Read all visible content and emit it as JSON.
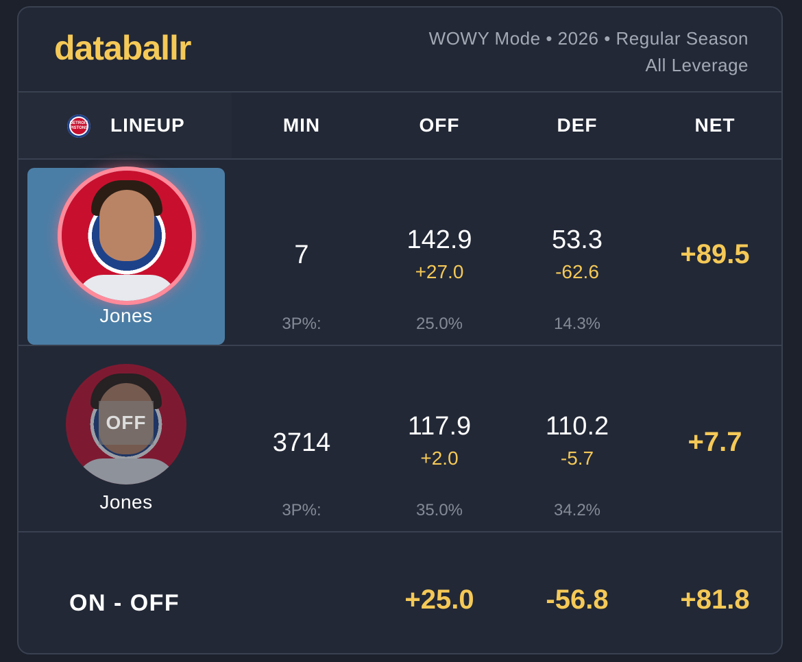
{
  "brand": {
    "logo": "databallr",
    "accent_color": "#f5c957"
  },
  "meta": {
    "line1": "WOWY Mode • 2026 • Regular Season",
    "line2": "All Leverage"
  },
  "columns": {
    "lineup": "LINEUP",
    "team_logo_text": "DETROIT PISTONS",
    "min": "MIN",
    "off": "OFF",
    "def": "DEF",
    "net": "NET"
  },
  "rows": [
    {
      "player": "Jones",
      "status": "on",
      "min": "7",
      "off": "142.9",
      "off_delta": "+27.0",
      "def": "53.3",
      "def_delta": "-62.6",
      "net": "+89.5",
      "three_label": "3P%:",
      "off_3p": "25.0%",
      "def_3p": "14.3%"
    },
    {
      "player": "Jones",
      "status": "off",
      "status_label": "OFF",
      "min": "3714",
      "off": "117.9",
      "off_delta": "+2.0",
      "def": "110.2",
      "def_delta": "-5.7",
      "net": "+7.7",
      "three_label": "3P%:",
      "off_3p": "35.0%",
      "def_3p": "34.2%"
    }
  ],
  "on_off": {
    "label": "ON - OFF",
    "off": "+25.0",
    "def": "-56.8",
    "net": "+81.8"
  }
}
